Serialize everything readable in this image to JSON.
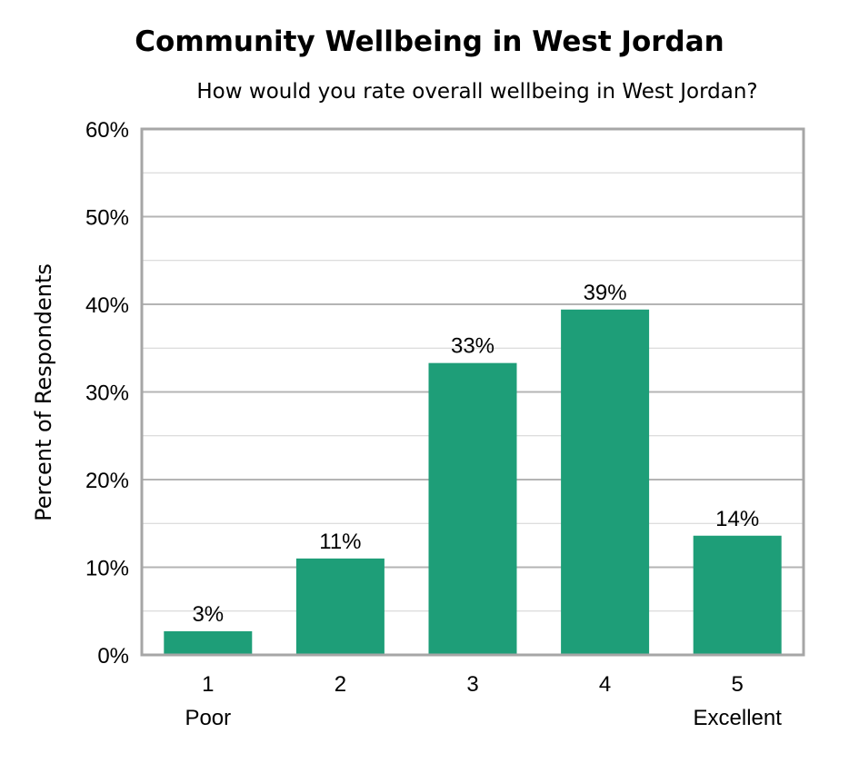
{
  "chart_data": {
    "type": "bar",
    "title": "Community Wellbeing in West Jordan",
    "subtitle": "How would you rate overall wellbeing in West Jordan?",
    "ylabel": "Percent of Respondents",
    "xlabel": "",
    "categories": [
      "1",
      "2",
      "3",
      "4",
      "5"
    ],
    "category_sublabels": [
      "Poor",
      "",
      "",
      "",
      "Excellent"
    ],
    "values": [
      2.7,
      11.0,
      33.3,
      39.4,
      13.6
    ],
    "data_labels": [
      "3%",
      "11%",
      "33%",
      "39%",
      "14%"
    ],
    "ylim": [
      0,
      60
    ],
    "yticks": [
      0,
      10,
      20,
      30,
      40,
      50,
      60
    ],
    "ytick_labels": [
      "0%",
      "10%",
      "20%",
      "30%",
      "40%",
      "50%",
      "60%"
    ],
    "grid": true,
    "bar_color": "#1e9e78",
    "grid_color": "#c8c8c8",
    "frame_color": "#a6a6a6"
  }
}
